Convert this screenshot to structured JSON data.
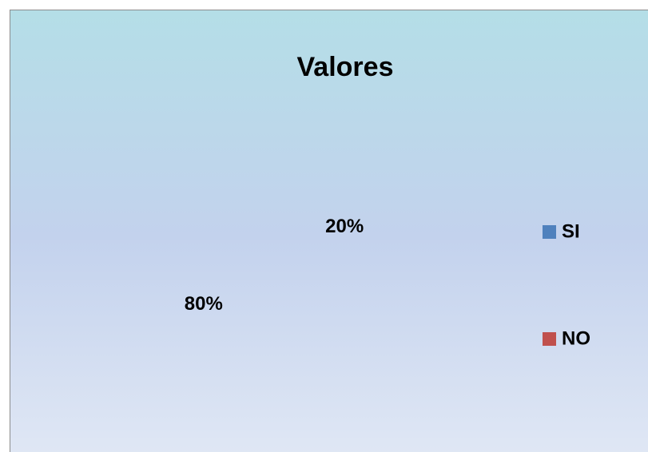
{
  "chart_data": {
    "type": "pie",
    "title": "Valores",
    "categories": [
      "SI",
      "NO"
    ],
    "values": [
      20,
      80
    ],
    "value_labels": [
      "20%",
      "80%"
    ],
    "colors": [
      "#4f81bd",
      "#c0504d"
    ]
  }
}
